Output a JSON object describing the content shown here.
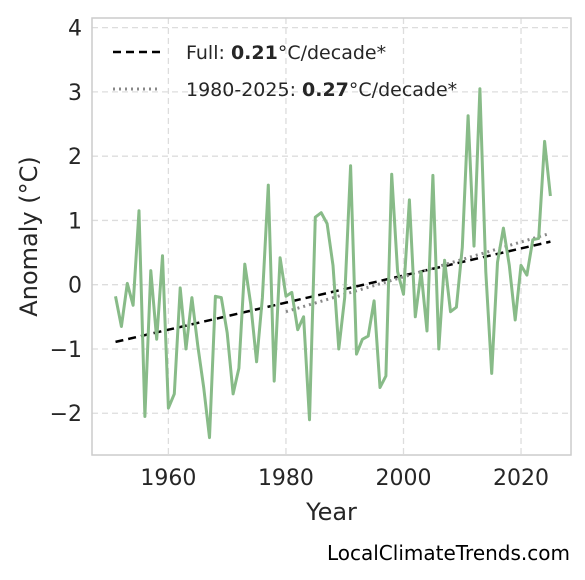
{
  "chart_data": {
    "type": "line",
    "xlabel": "Year",
    "ylabel": "Anomaly (°C)",
    "xlim": [
      1947,
      2028.5
    ],
    "ylim": [
      -2.65,
      4.15
    ],
    "xticks": [
      1960,
      1980,
      2000,
      2020
    ],
    "yticks": [
      -2,
      -1,
      0,
      1,
      2,
      3,
      4
    ],
    "ytick_labels": [
      "−2",
      "−1",
      "0",
      "1",
      "2",
      "3",
      "4"
    ],
    "grid": true,
    "legend_position": "top-left",
    "colors": {
      "series": "#88bb88",
      "full_trend": "#000000",
      "recent_trend": "#888888",
      "grid": "#dddddd",
      "frame": "#cccccc"
    },
    "series": [
      {
        "x": [
          1951,
          1952,
          1953,
          1954,
          1955,
          1956,
          1957,
          1958,
          1959,
          1960,
          1961,
          1962,
          1963,
          1964,
          1965,
          1966,
          1967,
          1968,
          1969,
          1970,
          1971,
          1972,
          1973,
          1974,
          1975,
          1976,
          1977,
          1978,
          1979,
          1980,
          1981,
          1982,
          1983,
          1984,
          1985,
          1986,
          1987,
          1988,
          1989,
          1990,
          1991,
          1992,
          1993,
          1994,
          1995,
          1996,
          1997,
          1998,
          1999,
          2000,
          2001,
          2002,
          2003,
          2004,
          2005,
          2006,
          2007,
          2008,
          2009,
          2010,
          2011,
          2012,
          2013,
          2014,
          2015,
          2016,
          2017,
          2018,
          2019,
          2020,
          2021,
          2022,
          2023,
          2024,
          2025
        ],
        "values": [
          -0.18,
          -0.65,
          0.02,
          -0.32,
          1.15,
          -2.05,
          0.22,
          -0.85,
          0.45,
          -1.92,
          -1.7,
          -0.05,
          -1.0,
          -0.2,
          -0.95,
          -1.6,
          -2.38,
          -0.18,
          -0.2,
          -0.75,
          -1.7,
          -1.3,
          0.32,
          -0.3,
          -1.2,
          -0.2,
          1.55,
          -1.5,
          0.42,
          -0.18,
          -0.12,
          -0.7,
          -0.5,
          -2.1,
          1.05,
          1.12,
          0.95,
          0.3,
          -1.0,
          -0.2,
          1.85,
          -1.08,
          -0.85,
          -0.8,
          -0.25,
          -1.6,
          -1.42,
          1.72,
          0.2,
          -0.15,
          1.32,
          -0.5,
          0.2,
          -0.72,
          1.7,
          -1.0,
          0.38,
          -0.42,
          -0.35,
          0.58,
          2.63,
          0.6,
          3.05,
          0.2,
          -1.38,
          0.35,
          0.88,
          0.3,
          -0.55,
          0.3,
          0.15,
          0.7,
          0.72,
          2.23,
          1.38
        ]
      }
    ],
    "trends": [
      {
        "label_prefix": "Full: ",
        "label_value": "0.21",
        "label_suffix": "°C/decade*",
        "x": [
          1951,
          2025
        ],
        "y": [
          -0.89,
          0.67
        ],
        "style": "dashed"
      },
      {
        "label_prefix": "1980-2025: ",
        "label_value": "0.27",
        "label_suffix": "°C/decade*",
        "x": [
          1980,
          2025
        ],
        "y": [
          -0.42,
          0.8
        ],
        "style": "dotted"
      }
    ]
  },
  "watermark": "LocalClimateTrends.com"
}
